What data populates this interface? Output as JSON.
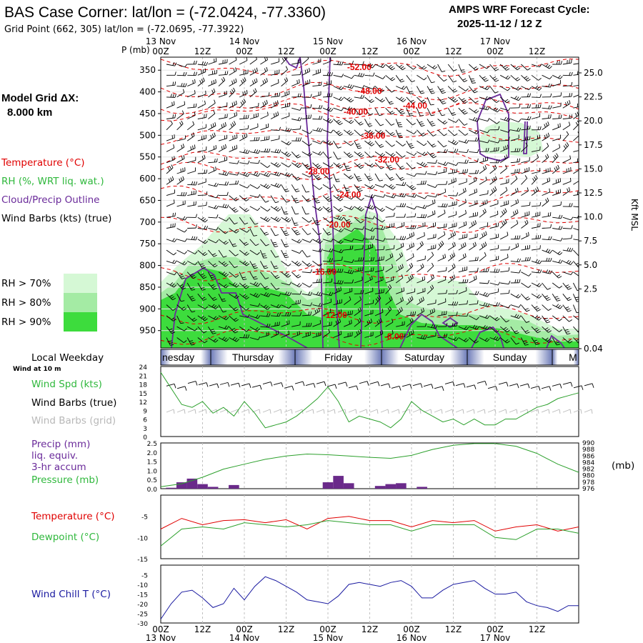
{
  "header": {
    "title": "BAS Case Corner:  lat/lon = (-72.0424, -77.3360)",
    "subtitle": "Grid Point (662, 305) lat/lon = (-72.0695, -77.3922)",
    "cycle_label": "AMPS WRF Forecast Cycle:",
    "cycle_value": "2025-11-12 / 12  Z",
    "grid_label": "Model Grid ΔX:",
    "grid_value": "8.000 km"
  },
  "colors": {
    "temperature": "#e00000",
    "rh": "#2fd43c",
    "cloud": "#6a2a9a",
    "wind": "#000000",
    "wind_grid": "#b8b8b8",
    "precip": "#6a2a8a",
    "pressure": "#2ca02c",
    "windchill": "#1a1aa0",
    "rh70": "#d5f8d5",
    "rh80": "#a4eba4",
    "rh90": "#3ddc3d"
  },
  "time_axis": {
    "top_dates": [
      "13 Nov",
      "14 Nov",
      "15 Nov",
      "16 Nov",
      "17 Nov"
    ],
    "hour_labels": [
      "00Z",
      "12Z",
      "00Z",
      "12Z",
      "00Z",
      "12Z",
      "00Z",
      "12Z",
      "00Z",
      "12Z"
    ],
    "bottom_dates": [
      "13 Nov",
      "14 Nov",
      "15 Nov",
      "16 Nov",
      "17 Nov"
    ]
  },
  "weekday_bar": {
    "title": "Local Weekday",
    "days": [
      "nesday",
      "Thursday",
      "Friday",
      "Saturday",
      "Sunday",
      "M"
    ]
  },
  "left_legend": {
    "temperature": "Temperature (°C)",
    "rh": "RH (%, WRT liq. wat.)",
    "cloud": "Cloud/Precip Outline",
    "wind": "Wind Barbs (kts) (true)",
    "rh70": "RH > 70%",
    "rh80": "RH > 80%",
    "rh90": "RH > 90%"
  },
  "panel_labels": {
    "wind_at": "Wind at 10 m",
    "wind_spd": "Wind Spd (kts)",
    "wind_true": "Wind Barbs (true)",
    "wind_grid": "Wind Barbs (grid)",
    "precip_1": "Precip (mm)",
    "precip_2": "liq. equiv.",
    "precip_3": "3-hr accum",
    "pressure": "Pressure (mb)",
    "pressure_unit": "(mb)",
    "temperature": "Temperature (°C)",
    "dewpoint": "Dewpoint (°C)",
    "windchill": "Wind Chill T (°C)"
  },
  "chart_data": [
    {
      "type": "heatmap",
      "name": "cross-section",
      "y_axis_title": "P (mb)",
      "y_ticks": [
        350,
        400,
        450,
        500,
        550,
        600,
        650,
        700,
        750,
        800,
        850,
        900,
        950
      ],
      "right_axis_title": "Kft MSL",
      "right_ticks": [
        "25.0",
        "22.5",
        "20.0",
        "17.5",
        "15.0",
        "12.5",
        "10.0",
        "7.5",
        "5.0",
        "2.5",
        "0.04"
      ],
      "isotherms": [
        {
          "label": "-52.00",
          "hour": 57,
          "p": 343
        },
        {
          "label": "-48.00",
          "hour": 60,
          "p": 398
        },
        {
          "label": "-44.00",
          "hour": 73,
          "p": 432
        },
        {
          "label": "-40.00",
          "hour": 56,
          "p": 446
        },
        {
          "label": "-36.00",
          "hour": 61,
          "p": 501
        },
        {
          "label": "-32.00",
          "hour": 65,
          "p": 556
        },
        {
          "label": "-28.00",
          "hour": 45,
          "p": 583
        },
        {
          "label": "-24.00",
          "hour": 54,
          "p": 637
        },
        {
          "label": "-20.00",
          "hour": 51,
          "p": 706
        },
        {
          "label": "-16.00",
          "hour": 47,
          "p": 815
        },
        {
          "label": "-12.00",
          "hour": 50,
          "p": 914
        },
        {
          "label": "-8.00",
          "hour": 67,
          "p": 964
        }
      ]
    },
    {
      "type": "line",
      "name": "surface-wind",
      "y_ticks": [
        0,
        3,
        6,
        9,
        12,
        15,
        18,
        21,
        24
      ],
      "ylim": [
        0,
        24
      ],
      "series": [
        {
          "name": "Wind Spd (kts)",
          "hours": [
            0,
            6,
            9,
            12,
            15,
            18,
            21,
            24,
            27,
            30,
            33,
            36,
            39,
            42,
            45,
            48,
            51,
            54,
            57,
            60,
            63,
            66,
            69,
            72,
            75,
            78,
            81,
            84,
            87,
            90,
            93,
            96,
            99,
            102,
            105,
            108,
            111,
            114,
            117,
            120
          ],
          "values": [
            22,
            11,
            10,
            12,
            8,
            10,
            7,
            12,
            8,
            3,
            4,
            5,
            7,
            10,
            13,
            17,
            12,
            5,
            7,
            6,
            5,
            3,
            6,
            12,
            9,
            7,
            5,
            6,
            4,
            6,
            4,
            4,
            6,
            6,
            8,
            10,
            11,
            13,
            14,
            15
          ]
        }
      ]
    },
    {
      "type": "bar",
      "name": "precip-pressure",
      "precip_ticks": [
        "2.5",
        "2.0",
        "1.5",
        "1.0",
        "0.5",
        "0.0"
      ],
      "pressure_ticks": [
        990,
        988,
        986,
        984,
        982,
        980,
        978,
        976
      ],
      "precip_bars": [
        {
          "hour": 3,
          "value": 0.05
        },
        {
          "hour": 6,
          "value": 0.35
        },
        {
          "hour": 9,
          "value": 0.55
        },
        {
          "hour": 12,
          "value": 0.25
        },
        {
          "hour": 15,
          "value": 0.1
        },
        {
          "hour": 21,
          "value": 0.2
        },
        {
          "hour": 48,
          "value": 0.35
        },
        {
          "hour": 51,
          "value": 0.7
        },
        {
          "hour": 54,
          "value": 0.3
        },
        {
          "hour": 63,
          "value": 0.15
        },
        {
          "hour": 66,
          "value": 0.25
        },
        {
          "hour": 69,
          "value": 0.3
        },
        {
          "hour": 75,
          "value": 0.1
        }
      ],
      "pressure_series": {
        "name": "Pressure (mb)",
        "hours": [
          0,
          6,
          12,
          18,
          24,
          30,
          36,
          42,
          48,
          54,
          60,
          66,
          72,
          78,
          84,
          90,
          96,
          102,
          108,
          114,
          120
        ],
        "values": [
          976.6,
          977.5,
          979.5,
          982,
          983.5,
          985,
          986,
          986.6,
          986.4,
          986,
          985.6,
          985.3,
          986.2,
          988,
          989.3,
          989.8,
          989.8,
          989,
          986.8,
          983.5,
          981
        ]
      }
    },
    {
      "type": "line",
      "name": "temperature-dewpoint",
      "y_ticks": [
        -5,
        -10,
        -15
      ],
      "ylim": [
        -15,
        0
      ],
      "series": [
        {
          "name": "Temperature (°C)",
          "hours": [
            0,
            6,
            12,
            18,
            24,
            30,
            36,
            42,
            48,
            54,
            60,
            66,
            72,
            78,
            84,
            90,
            96,
            102,
            108,
            114,
            120
          ],
          "values": [
            -8,
            -5.5,
            -7,
            -6,
            -5.8,
            -6.5,
            -5.8,
            -8,
            -5.5,
            -5,
            -6,
            -6,
            -7.5,
            -6,
            -6.5,
            -6,
            -8.5,
            -7.5,
            -7,
            -8.5,
            -7.5
          ]
        },
        {
          "name": "Dewpoint (°C)",
          "hours": [
            0,
            6,
            12,
            18,
            24,
            30,
            36,
            42,
            48,
            54,
            60,
            66,
            72,
            78,
            84,
            90,
            96,
            102,
            108,
            114,
            120
          ],
          "values": [
            -12,
            -8,
            -7.5,
            -8,
            -6.5,
            -7,
            -7.5,
            -7,
            -6,
            -6.5,
            -7,
            -7,
            -8.5,
            -7,
            -7,
            -7,
            -10,
            -10.5,
            -8,
            -8,
            -9
          ]
        }
      ]
    },
    {
      "type": "line",
      "name": "wind-chill",
      "y_ticks": [
        -5,
        -10,
        -15,
        -20,
        -25,
        -30
      ],
      "ylim": [
        -30,
        0
      ],
      "series": [
        {
          "name": "Wind Chill T (°C)",
          "hours": [
            0,
            3,
            6,
            9,
            12,
            15,
            18,
            21,
            24,
            27,
            30,
            33,
            36,
            39,
            42,
            45,
            48,
            51,
            54,
            57,
            60,
            63,
            66,
            69,
            72,
            75,
            78,
            81,
            84,
            87,
            90,
            93,
            96,
            99,
            102,
            105,
            108,
            111,
            114,
            117,
            120
          ],
          "values": [
            -28,
            -20,
            -14,
            -13,
            -17,
            -22,
            -20,
            -12,
            -18,
            -11,
            -6,
            -8,
            -11,
            -14,
            -18,
            -19,
            -20,
            -16,
            -10,
            -9,
            -10,
            -11,
            -9,
            -8,
            -11,
            -17,
            -17,
            -13,
            -10,
            -9,
            -8,
            -12,
            -15,
            -15,
            -14,
            -19,
            -21,
            -22,
            -24,
            -21,
            -21
          ]
        }
      ]
    }
  ]
}
